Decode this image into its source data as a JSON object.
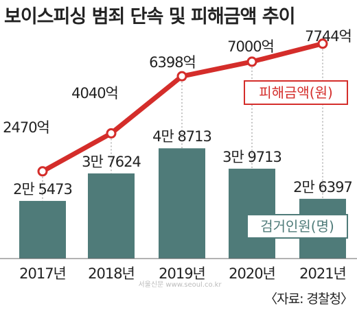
{
  "chart_data": {
    "type": "bar+line",
    "title": "보이스피싱 범죄 단속 및 피해금액 추이",
    "categories": [
      "2017년",
      "2018년",
      "2019년",
      "2020년",
      "2021년"
    ],
    "series": [
      {
        "name": "검거인원(명)",
        "type": "bar",
        "values": [
          25473,
          37624,
          48713,
          39713,
          26397
        ],
        "labels": [
          "2만 5473",
          "3만 7624",
          "4만 8713",
          "3만 9713",
          "2만 6397"
        ],
        "color": "#4f7b79"
      },
      {
        "name": "피해금액(원)",
        "type": "line",
        "values": [
          2470,
          4040,
          6398,
          7000,
          7744
        ],
        "labels": [
          "2470억",
          "4040억",
          "6398억",
          "7000억",
          "7744억"
        ],
        "color": "#d42d2a"
      }
    ]
  },
  "source": "〈자료: 경찰청〉",
  "watermark": "서울신문 www.seoul.co.kr"
}
